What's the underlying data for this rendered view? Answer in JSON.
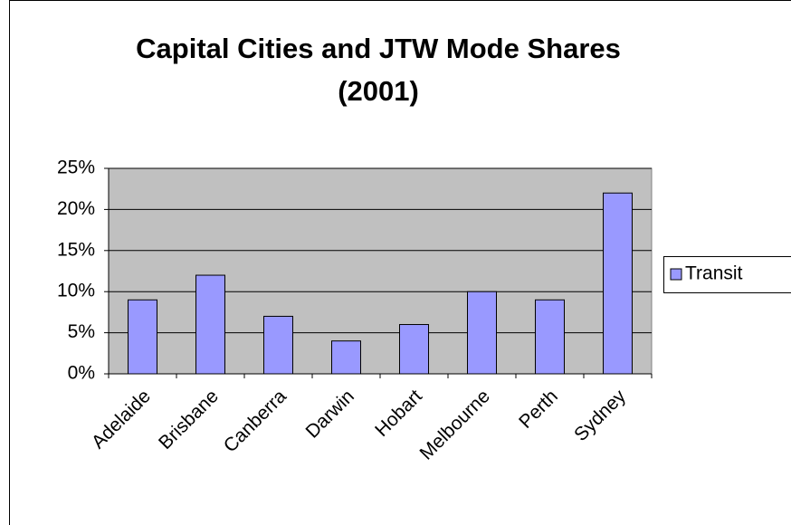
{
  "chart_data": {
    "type": "bar",
    "title": "Capital Cities and JTW Mode Shares (2001)",
    "categories": [
      "Adelaide",
      "Brisbane",
      "Canberra",
      "Darwin",
      "Hobart",
      "Melbourne",
      "Perth",
      "Sydney"
    ],
    "series": [
      {
        "name": "Transit",
        "color": "#9999ff",
        "values": [
          9,
          12,
          7,
          4,
          6,
          10,
          9,
          22
        ]
      }
    ],
    "ylim": [
      0,
      25
    ],
    "yticks": [
      {
        "value": 0,
        "label": "0%"
      },
      {
        "value": 5,
        "label": "5%"
      },
      {
        "value": 10,
        "label": "10%"
      },
      {
        "value": 15,
        "label": "15%"
      },
      {
        "value": 20,
        "label": "20%"
      },
      {
        "value": 25,
        "label": "25%"
      }
    ],
    "grid": true,
    "legend": "right"
  }
}
